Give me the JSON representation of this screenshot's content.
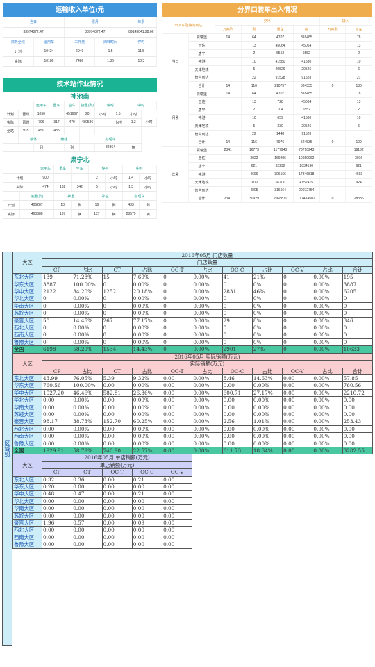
{
  "p1": {
    "title": "运输收入单位:元",
    "h1": [
      "当日",
      "累月",
      "年累"
    ],
    "v1": [
      "33974872.47",
      "33974872.47",
      "89143041.28.66"
    ],
    "h2": [
      "商务全线",
      "运用车",
      "工作量",
      "周转时间",
      "停时"
    ],
    "rows": [
      [
        "计划",
        "10424",
        "6949",
        "1.5",
        "11.5"
      ],
      [
        "实际",
        "10180",
        "7486",
        "1.36",
        "10.3"
      ]
    ]
  },
  "p2": {
    "title": "技术站作业情况",
    "s1": {
      "name": "神池南",
      "h1": [
        "运用车",
        "重车",
        "空车",
        "接重(列)",
        "停时",
        "中时"
      ],
      "rows": [
        [
          "计划",
          "晋煤",
          "1050",
          "",
          "451667",
          "20",
          "小时",
          "1.5",
          "小时"
        ],
        [
          "实际",
          "晋煤",
          "796",
          "317",
          "479",
          "480586",
          "",
          "小时",
          "1.3",
          "小时"
        ],
        [
          "全站",
          "935",
          "450",
          "485",
          "",
          "",
          "",
          "",
          ""
        ]
      ],
      "h2": [
        "解体",
        "编组",
        "办理车"
      ],
      "row2": [
        "",
        "列",
        "",
        "列",
        "",
        "32364",
        "辆"
      ]
    },
    "s2": {
      "name": "肃宁北",
      "h1": [
        "运用车",
        "重车",
        "空车",
        "停时",
        "中时"
      ],
      "rows": [
        [
          "计划",
          "900",
          "",
          "",
          "2",
          "小时",
          "1.4",
          "小时"
        ],
        [
          "实际",
          "474",
          "132",
          "342",
          "5",
          "小时",
          "1.3",
          "小时"
        ]
      ],
      "h2": [
        "接重(列)",
        "推重",
        "补空",
        "办理车"
      ],
      "rows2": [
        [
          "计划",
          "406287",
          "13",
          "列",
          "16",
          "列",
          "433",
          "列"
        ],
        [
          "实际",
          "460888",
          "137",
          "辆",
          "127",
          "辆",
          "28579",
          "辆"
        ]
      ]
    }
  },
  "p3": {
    "title": "分界口装车出入情况",
    "left_head": "出入车及换内到达",
    "g1": "交出",
    "g2": "接入",
    "cols": [
      "万吨列",
      "列",
      "重车",
      "吨",
      "万吨列",
      "空车"
    ],
    "blocks": [
      {
        "name": "当日",
        "rows": [
          [
            "贾瑞堡",
            "14",
            "64",
            "4707",
            "318485",
            "",
            "78",
            "4762"
          ],
          [
            "王佐",
            "",
            "13",
            "45064",
            "45064",
            "",
            "13",
            "728"
          ],
          [
            "唐宁",
            "",
            "2",
            "6552",
            "6552",
            "",
            "2",
            "104"
          ],
          [
            "神港",
            "",
            "10",
            "41580",
            "41580",
            "",
            "10",
            "653"
          ],
          [
            "天津地铁",
            "",
            "5",
            "20526",
            "20526",
            "",
            "6",
            "396"
          ],
          [
            "管内到达",
            "",
            "22",
            "91528",
            "91528",
            "",
            "21",
            "1383"
          ],
          [
            "合计",
            "14",
            "116",
            "210757",
            "524535",
            "0",
            "130",
            "8026"
          ]
        ]
      },
      {
        "name": "月累",
        "rows": [
          [
            "贾瑞堡",
            "14",
            "64",
            "4707",
            "318485",
            "",
            "78",
            "4762"
          ],
          [
            "王佐",
            "",
            "13",
            "728",
            "45064",
            "",
            "13",
            "728"
          ],
          [
            "唐宁",
            "",
            "2",
            "104",
            "6552",
            "",
            "2",
            "104"
          ],
          [
            "神港",
            "",
            "10",
            "659",
            "41580",
            "",
            "10",
            "653"
          ],
          [
            "天津地铁",
            "",
            "5",
            "330",
            "20526",
            "",
            "6",
            "396"
          ],
          [
            "管内到达",
            "",
            "22",
            "1448",
            "91528",
            "",
            "",
            "",
            ""
          ],
          [
            "合计",
            "14",
            "116",
            "7976",
            "524535",
            "0",
            "109",
            "6643"
          ]
        ]
      },
      {
        "name": "年累",
        "rows": [
          [
            "贾瑞堡",
            "2341",
            "16773",
            "1177943",
            "78710243",
            "",
            "19132",
            "1176017"
          ],
          [
            "王佐",
            "",
            "3022",
            "169206",
            "10659962",
            "",
            "3016",
            "168643"
          ],
          [
            "唐宁",
            "",
            "621",
            "32292",
            "2034190",
            "",
            "621",
            "32289"
          ],
          [
            "神港",
            "",
            "4696",
            "306166",
            "17846818",
            "",
            "4693",
            "305936"
          ],
          [
            "天津地铁",
            "",
            "1012",
            "66700",
            "4152415",
            "",
            "924",
            "60918"
          ],
          [
            "管内到达",
            "",
            "4805",
            "316564",
            "20072754",
            "",
            "",
            ""
          ],
          [
            "合计",
            "2341",
            "30929",
            "2068871",
            "117414502",
            "0",
            "28386",
            "1744603"
          ]
        ]
      }
    ]
  },
  "big": {
    "side_label": "区域别",
    "t1": {
      "title": "2016年05月 门店数量",
      "sub": "门店数量",
      "cols": [
        "CP",
        "占比",
        "CT",
        "占比",
        "OC-T",
        "占比",
        "OC-C",
        "占比",
        "OC-V",
        "占比",
        "合计"
      ],
      "rows": [
        [
          "东北大区",
          "139",
          "71.28%",
          "15",
          "7.69%",
          "0",
          "0.00%",
          "41",
          "21%",
          "0",
          "0.00%",
          "195"
        ],
        [
          "华东大区",
          "3887",
          "100.00%",
          "0",
          "0.00%",
          "0",
          "0.00%",
          "0",
          "0%",
          "0",
          "0.00%",
          "3887"
        ],
        [
          "华中大区",
          "2122",
          "34.20%",
          "1252",
          "20.18%",
          "0",
          "0.00%",
          "2831",
          "46%",
          "0",
          "0.00%",
          "6205"
        ],
        [
          "华北大区",
          "0",
          "0.00%",
          "0",
          "0.00%",
          "0",
          "0.00%",
          "0",
          "0%",
          "0",
          "0.00%",
          "0"
        ],
        [
          "华南大区",
          "0",
          "0.00%",
          "0",
          "0.00%",
          "0",
          "0.00%",
          "0",
          "0%",
          "0",
          "0.00%",
          "0"
        ],
        [
          "苏皖大区",
          "0",
          "0.00%",
          "0",
          "0.00%",
          "0",
          "0.00%",
          "0",
          "0%",
          "0",
          "0.00%",
          "0"
        ],
        [
          "豪晋大区",
          "50",
          "14.45%",
          "267",
          "77.17%",
          "0",
          "0.00%",
          "29",
          "8%",
          "0",
          "0.00%",
          "346"
        ],
        [
          "西北大区",
          "0",
          "0.00%",
          "0",
          "0.00%",
          "0",
          "0.00%",
          "0",
          "0%",
          "0",
          "0.00%",
          "0"
        ],
        [
          "西南大区",
          "0",
          "0.00%",
          "0",
          "0.00%",
          "0",
          "0.00%",
          "0",
          "0%",
          "0",
          "0.00%",
          "0"
        ],
        [
          "鲁豫大区",
          "0",
          "0.00%",
          "0",
          "0.00%",
          "0",
          "0.00%",
          "0",
          "0%",
          "0",
          "0.00%",
          "0"
        ]
      ],
      "total": [
        "全国",
        "6198",
        "58.29%",
        "1534",
        "14.43%",
        "0",
        "0.00%",
        "2901",
        "27%",
        "0",
        "0.00%",
        "10633"
      ]
    },
    "t2": {
      "title": "2016年05月 实际销额(万元)",
      "sub": "实际销额(万元)",
      "cols": [
        "CP",
        "占比",
        "CT",
        "占比",
        "OC-T",
        "占比",
        "OC-C",
        "占比",
        "OC-V",
        "占比",
        "合计"
      ],
      "rows": [
        [
          "东北大区",
          "43.99",
          "76.05%",
          "5.39",
          "9.32%",
          "0.00",
          "0.00%",
          "8.46",
          "14.63%",
          "0.00",
          "0.00%",
          "57.85"
        ],
        [
          "华东大区",
          "760.56",
          "100.00%",
          "0.00",
          "0.00%",
          "0.00",
          "0.00%",
          "0.00",
          "0.00%",
          "0.00",
          "0.00%",
          "760.56"
        ],
        [
          "华中大区",
          "1027.20",
          "46.46%",
          "582.81",
          "26.36%",
          "0.00",
          "0.00%",
          "600.71",
          "27.17%",
          "0.00",
          "0.00%",
          "2210.72"
        ],
        [
          "华北大区",
          "0.00",
          "0.00%",
          "0.00",
          "0.00%",
          "0.00",
          "0.00%",
          "0.00",
          "0.00%",
          "0.00",
          "0.00%",
          "0.00"
        ],
        [
          "华南大区",
          "0.00",
          "0.00%",
          "0.00",
          "0.00%",
          "0.00",
          "0.00%",
          "0.00",
          "0.00%",
          "0.00",
          "0.00%",
          "0.00"
        ],
        [
          "苏皖大区",
          "0.00",
          "0.00%",
          "0.00",
          "0.00%",
          "0.00",
          "0.00%",
          "0.00",
          "0.00%",
          "0.00",
          "0.00%",
          "0.00"
        ],
        [
          "豪晋大区",
          "98.17",
          "38.73%",
          "152.70",
          "60.25%",
          "0.00",
          "0.00%",
          "2.56",
          "1.01%",
          "0.00",
          "0.00%",
          "253.43"
        ],
        [
          "西北大区",
          "0.00",
          "0.00%",
          "0.00",
          "0.00%",
          "0.00",
          "0.00%",
          "0.00",
          "0.00%",
          "0.00",
          "0.00%",
          "0.00"
        ],
        [
          "西南大区",
          "0.00",
          "0.00%",
          "0.00",
          "0.00%",
          "0.00",
          "0.00%",
          "0.00",
          "0.00%",
          "0.00",
          "0.00%",
          "0.00"
        ],
        [
          "鲁豫大区",
          "0.00",
          "0.00%",
          "0.00",
          "0.00%",
          "0.00",
          "0.00%",
          "0.00",
          "0.00%",
          "0.00",
          "0.00%",
          "0.00"
        ]
      ],
      "total": [
        "全国",
        "1929.91",
        "58.79%",
        "740.90",
        "22.57%",
        "0.00",
        "0.00%",
        "611.73",
        "18.64%",
        "0.00",
        "0.00%",
        "3282.55"
      ]
    },
    "t3": {
      "title": "2016年05月 单店销额(万元)",
      "sub": "单店销额(万元)",
      "cols": [
        "CP",
        "CT",
        "OC-T",
        "OC-C",
        "OC-V"
      ],
      "rows": [
        [
          "东北大区",
          "0.32",
          "0.36",
          "0.00",
          "0.21",
          "0.00"
        ],
        [
          "华东大区",
          "0.20",
          "0.00",
          "0.00",
          "0.00",
          "0.00"
        ],
        [
          "华中大区",
          "0.48",
          "0.47",
          "0.00",
          "0.21",
          "0.00"
        ],
        [
          "华北大区",
          "0.00",
          "0.00",
          "0.00",
          "0.00",
          "0.00"
        ],
        [
          "华南大区",
          "0.00",
          "0.00",
          "0.00",
          "0.00",
          "0.00"
        ],
        [
          "苏皖大区",
          "0.00",
          "0.00",
          "0.00",
          "0.00",
          "0.00"
        ],
        [
          "豪晋大区",
          "1.96",
          "0.57",
          "0.00",
          "0.09",
          "0.00"
        ],
        [
          "西北大区",
          "0.00",
          "0.00",
          "0.00",
          "0.00",
          "0.00"
        ],
        [
          "西南大区",
          "0.00",
          "0.00",
          "0.00",
          "0.00",
          "0.00"
        ],
        [
          "鲁豫大区",
          "0.00",
          "0.00",
          "0.00",
          "0.00",
          "0.00"
        ]
      ]
    },
    "region_head": "大区"
  }
}
